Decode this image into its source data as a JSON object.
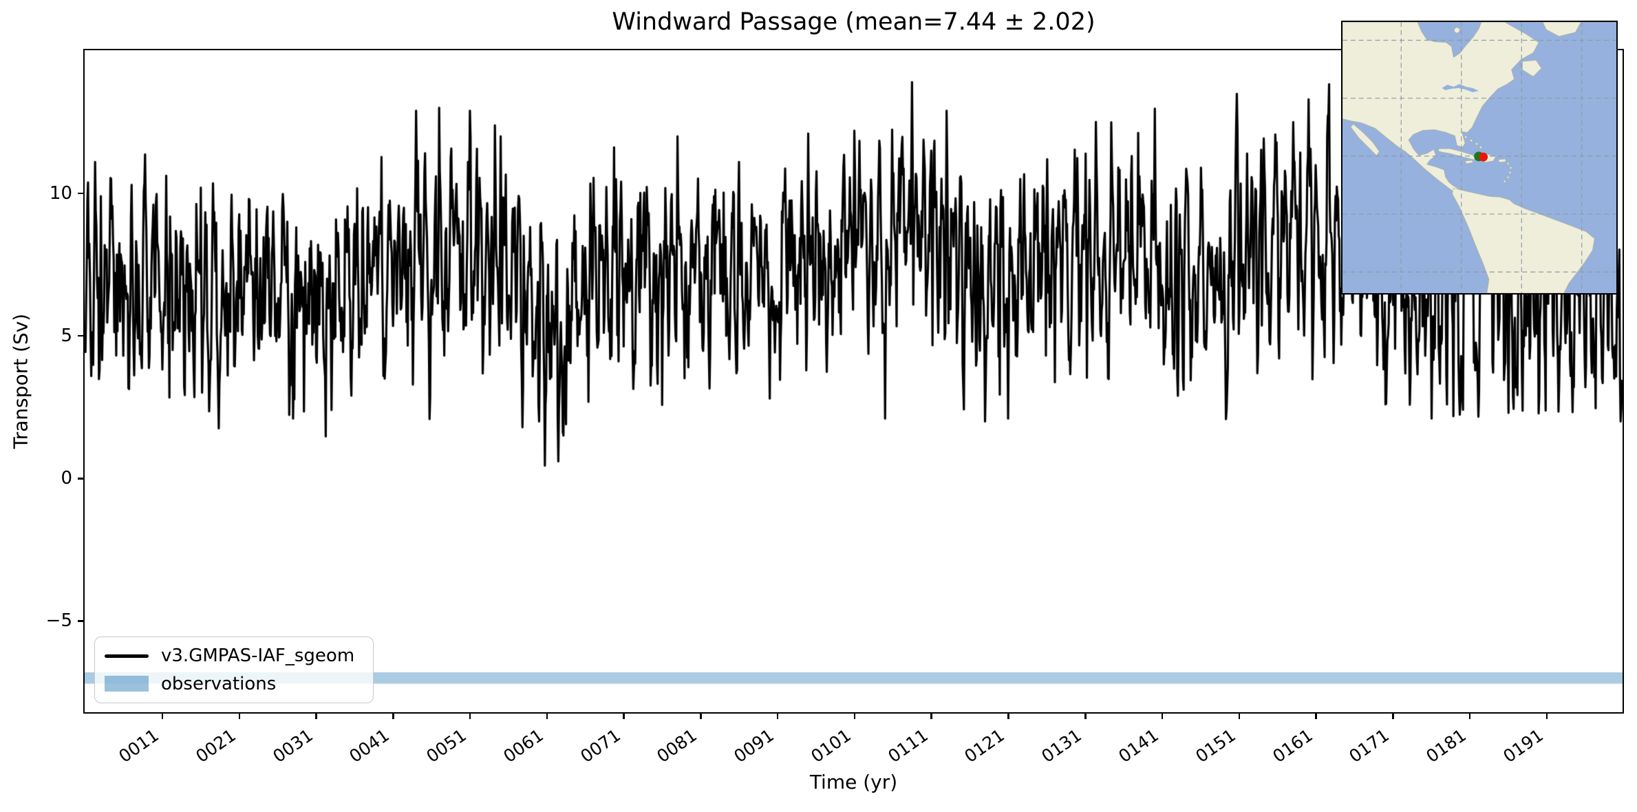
{
  "figure": {
    "background": "#ffffff"
  },
  "chart_data": {
    "type": "line",
    "title": "Windward Passage (mean=7.44 ± 2.02)",
    "xlabel": "Time (yr)",
    "ylabel": "Transport (Sv)",
    "x_tick_labels": [
      "0011",
      "0021",
      "0031",
      "0041",
      "0051",
      "0061",
      "0071",
      "0081",
      "0091",
      "0101",
      "0111",
      "0121",
      "0131",
      "0141",
      "0151",
      "0161",
      "0171",
      "0181",
      "0191"
    ],
    "x_tick_years": [
      11,
      21,
      31,
      41,
      51,
      61,
      71,
      81,
      91,
      101,
      111,
      121,
      131,
      141,
      151,
      161,
      171,
      181,
      191
    ],
    "y_tick_labels": [
      "10",
      "5",
      "0",
      "−5"
    ],
    "y_tick_values": [
      10,
      5,
      0,
      -5
    ],
    "xlim_years": [
      0.89,
      200.85
    ],
    "ylim": [
      -8.2,
      15.02
    ],
    "grid": false,
    "legend_position": "lower left",
    "series": [
      {
        "name": "v3.GMPAS-IAF_sgeom",
        "color": "#000000",
        "linewidth": 3.2,
        "n_points": 2400,
        "time_step": "monthly",
        "stats": {
          "mean": 7.44,
          "std": 2.02,
          "approx_min": 0.5,
          "approx_max": 13.9
        },
        "clamp": [
          0.45,
          14.0
        ],
        "synthesis": {
          "seed": 20,
          "ar1": 0.45,
          "sigma": 1.3,
          "seasonal_amp": [
            0.9,
            2.7
          ]
        },
        "envelope_year_mean": [
          [
            1,
            6.4
          ],
          [
            6,
            6.9
          ],
          [
            12,
            6.6
          ],
          [
            18,
            6.2
          ],
          [
            24,
            6.6
          ],
          [
            28,
            6.2
          ],
          [
            34,
            6.9
          ],
          [
            40,
            7.3
          ],
          [
            46,
            7.6
          ],
          [
            52,
            7.7
          ],
          [
            57,
            7.0
          ],
          [
            62,
            5.6
          ],
          [
            67,
            6.8
          ],
          [
            73,
            7.0
          ],
          [
            79,
            7.2
          ],
          [
            85,
            7.1
          ],
          [
            91,
            7.0
          ],
          [
            97,
            7.6
          ],
          [
            103,
            8.1
          ],
          [
            108,
            8.5
          ],
          [
            113,
            8.0
          ],
          [
            118,
            6.8
          ],
          [
            122,
            6.7
          ],
          [
            127,
            7.6
          ],
          [
            132,
            8.0
          ],
          [
            137,
            7.5
          ],
          [
            142,
            7.3
          ],
          [
            147,
            7.5
          ],
          [
            152,
            7.8
          ],
          [
            157,
            8.2
          ],
          [
            162,
            8.3
          ],
          [
            167,
            7.2
          ],
          [
            172,
            6.6
          ],
          [
            177,
            6.4
          ],
          [
            182,
            6.8
          ],
          [
            187,
            6.3
          ],
          [
            192,
            6.5
          ],
          [
            197,
            6.2
          ],
          [
            200.8,
            5.4
          ]
        ],
        "extremes_year_value": [
          [
            3,
            9.9
          ],
          [
            7,
            10.3
          ],
          [
            16,
            10.2
          ],
          [
            28,
            2.1
          ],
          [
            33,
            2.4
          ],
          [
            44,
            12.9
          ],
          [
            47,
            13.0
          ],
          [
            51,
            12.9
          ],
          [
            55,
            12.0
          ],
          [
            60,
            2.0
          ],
          [
            62.5,
            0.6
          ],
          [
            63.5,
            1.9
          ],
          [
            70,
            10.5
          ],
          [
            78,
            12.0
          ],
          [
            86,
            11.1
          ],
          [
            90,
            2.8
          ],
          [
            95,
            12.1
          ],
          [
            101,
            12.2
          ],
          [
            105,
            2.1
          ],
          [
            108.5,
            13.9
          ],
          [
            111,
            11.5
          ],
          [
            113,
            12.9
          ],
          [
            118,
            2.0
          ],
          [
            121,
            2.1
          ],
          [
            126,
            11.2
          ],
          [
            131,
            11.4
          ],
          [
            138,
            10.6
          ],
          [
            143,
            2.9
          ],
          [
            146,
            10.9
          ],
          [
            152,
            11.4
          ],
          [
            158,
            12.5
          ],
          [
            160,
            13.3
          ],
          [
            162.5,
            12.7
          ],
          [
            166,
            11.7
          ],
          [
            170,
            2.6
          ],
          [
            176,
            2.1
          ],
          [
            181,
            10.7
          ],
          [
            186,
            2.3
          ],
          [
            191,
            9.8
          ],
          [
            196,
            3.2
          ],
          [
            200.6,
            2.0
          ]
        ]
      }
    ],
    "observations_band": {
      "label": "observations",
      "y_range": [
        -7.2,
        -6.8
      ],
      "color": "rgba(31,119,180,0.38)"
    }
  },
  "legend": {
    "entries": [
      {
        "label": "v3.GMPAS-IAF_sgeom",
        "swatch": "line",
        "color": "#000000"
      },
      {
        "label": "observations",
        "swatch": "patch",
        "color": "rgba(31,119,180,0.45)"
      }
    ]
  },
  "inset_map": {
    "description": "Location inset map of the Windward Passage section (Caribbean)",
    "extent_lon": [
      -119.5,
      -28.5
    ],
    "extent_lat": [
      -27.3,
      66.3
    ],
    "gridline_lons": [
      -100,
      -80,
      -60,
      -40
    ],
    "gridline_lats": [
      60,
      40,
      20,
      0,
      -20
    ],
    "ocean_color": "#96b1dd",
    "land_color": "#eeeeda",
    "coast_color": "#b3b3a0",
    "gridline_color": "#8d9aa8",
    "markers": [
      {
        "name": "section-point-west",
        "lon": -74.2,
        "lat": 19.9,
        "color": "#1a7a1a",
        "r": 7
      },
      {
        "name": "section-point-east",
        "lon": -72.7,
        "lat": 19.7,
        "color": "#e8150e",
        "r": 6.5
      }
    ]
  }
}
